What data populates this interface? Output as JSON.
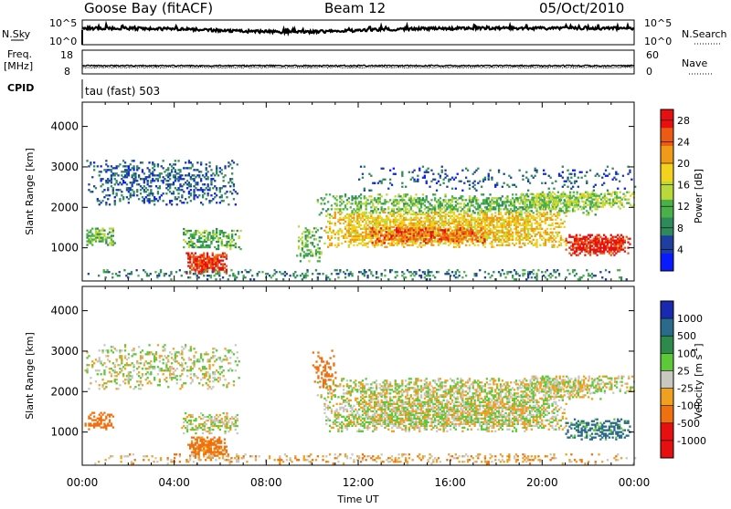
{
  "header": {
    "site": "Goose Bay (fitACF)",
    "beam": "Beam 12",
    "date": "05/Oct/2010"
  },
  "noise_panel": {
    "left_label": "N.Sky",
    "left_ticks": [
      "10^5",
      "10^0"
    ],
    "right_label": "N.Search",
    "right_ticks": [
      "10^5",
      "10^0"
    ]
  },
  "freq_panel": {
    "left_label_1": "Freq.",
    "left_label_2": "[MHz]",
    "left_ticks": [
      "18",
      "8"
    ],
    "right_label": "Nave",
    "right_ticks": [
      "60",
      "0"
    ]
  },
  "cpid": {
    "label": "CPID",
    "value": "tau (fast) 503"
  },
  "colors": {
    "power_scale": [
      "#0a1aff",
      "#1f3fa0",
      "#2e8a5a",
      "#4ab04a",
      "#b9d83a",
      "#f2d21e",
      "#f09a1a",
      "#ec5a14",
      "#e61010"
    ],
    "velocity_scale": [
      "#1a2ab0",
      "#2a6a8a",
      "#2e8a4a",
      "#5cc83a",
      "#c8c8c0",
      "#f0a020",
      "#f07010",
      "#ec3a10",
      "#e61010"
    ]
  },
  "chart_data": [
    {
      "type": "heatmap",
      "panel": "power",
      "ylabel": "Slant Range [km]",
      "ylim": [
        180,
        4600
      ],
      "yticks": [
        "1000",
        "2000",
        "3000",
        "4000"
      ],
      "xticks": [
        "00:00",
        "04:00",
        "08:00",
        "12:00",
        "16:00",
        "20:00",
        "00:00"
      ],
      "xlim_hours": [
        0,
        24
      ],
      "colorbar": {
        "label": "Power [dB]",
        "ticks": [
          "4",
          "8",
          "12",
          "16",
          "20",
          "24",
          "28"
        ],
        "range": [
          0,
          30
        ]
      },
      "regions": [
        {
          "t0": 0.1,
          "t1": 6.8,
          "r0": 2050,
          "r1": 3150,
          "value": 6,
          "density": 0.35
        },
        {
          "t0": 0.1,
          "t1": 1.4,
          "r0": 1050,
          "r1": 1500,
          "value": 12,
          "density": 0.6
        },
        {
          "t0": 4.3,
          "t1": 6.9,
          "r0": 950,
          "r1": 1450,
          "value": 11,
          "density": 0.55
        },
        {
          "t0": 4.5,
          "t1": 6.3,
          "r0": 350,
          "r1": 850,
          "value": 27,
          "density": 0.85
        },
        {
          "t0": 0.0,
          "t1": 24.0,
          "r0": 200,
          "r1": 450,
          "value": 8,
          "density": 0.25
        },
        {
          "t0": 9.3,
          "t1": 10.4,
          "r0": 650,
          "r1": 1550,
          "value": 12,
          "density": 0.35
        },
        {
          "t0": 10.2,
          "t1": 22.5,
          "r0": 1800,
          "r1": 2300,
          "value": 12,
          "density": 0.55
        },
        {
          "t0": 10.5,
          "t1": 21.0,
          "r0": 1000,
          "r1": 1900,
          "value": 19,
          "density": 0.75
        },
        {
          "t0": 12.5,
          "t1": 17.5,
          "r0": 1100,
          "r1": 1500,
          "value": 25,
          "density": 0.6
        },
        {
          "t0": 21.0,
          "t1": 23.8,
          "r0": 800,
          "r1": 1300,
          "value": 28,
          "density": 0.85
        },
        {
          "t0": 19.0,
          "t1": 24.0,
          "r0": 1950,
          "r1": 2400,
          "value": 14,
          "density": 0.55
        },
        {
          "t0": 12.0,
          "t1": 24.0,
          "r0": 2400,
          "r1": 3000,
          "value": 6,
          "density": 0.15
        }
      ]
    },
    {
      "type": "heatmap",
      "panel": "velocity",
      "ylabel": "Slant Range [km]",
      "ylim": [
        180,
        4600
      ],
      "yticks": [
        "1000",
        "2000",
        "3000",
        "4000"
      ],
      "xticks": [
        "00:00",
        "04:00",
        "08:00",
        "12:00",
        "16:00",
        "20:00",
        "00:00"
      ],
      "xlabel": "Time UT",
      "xlim_hours": [
        0,
        24
      ],
      "colorbar": {
        "label": "Velocity [m s^-1]",
        "ticks": [
          "1000",
          "500",
          "100",
          "25",
          "-25",
          "-100",
          "-500",
          "-1000"
        ]
      },
      "regions": [
        {
          "t0": 0.1,
          "t1": 6.8,
          "r0": 2050,
          "r1": 3150,
          "value": 0,
          "density": 0.3
        },
        {
          "t0": 0.1,
          "t1": 1.4,
          "r0": 1050,
          "r1": 1500,
          "value": -200,
          "density": 0.55
        },
        {
          "t0": 4.3,
          "t1": 6.9,
          "r0": 950,
          "r1": 1450,
          "value": 0,
          "density": 0.55
        },
        {
          "t0": 4.5,
          "t1": 6.3,
          "r0": 350,
          "r1": 850,
          "value": -150,
          "density": 0.8
        },
        {
          "t0": 0.0,
          "t1": 24.0,
          "r0": 200,
          "r1": 450,
          "value": -60,
          "density": 0.25
        },
        {
          "t0": 10.2,
          "t1": 22.5,
          "r0": 1800,
          "r1": 2300,
          "value": 0,
          "density": 0.5
        },
        {
          "t0": 10.5,
          "t1": 21.0,
          "r0": 1000,
          "r1": 1900,
          "value": 0,
          "density": 0.75
        },
        {
          "t0": 21.0,
          "t1": 23.8,
          "r0": 800,
          "r1": 1300,
          "value": 150,
          "density": 0.6
        },
        {
          "t0": 19.0,
          "t1": 24.0,
          "r0": 1950,
          "r1": 2400,
          "value": 0,
          "density": 0.5
        },
        {
          "t0": 10.0,
          "t1": 11.0,
          "r0": 2000,
          "r1": 3000,
          "value": -400,
          "density": 0.3
        }
      ]
    }
  ]
}
